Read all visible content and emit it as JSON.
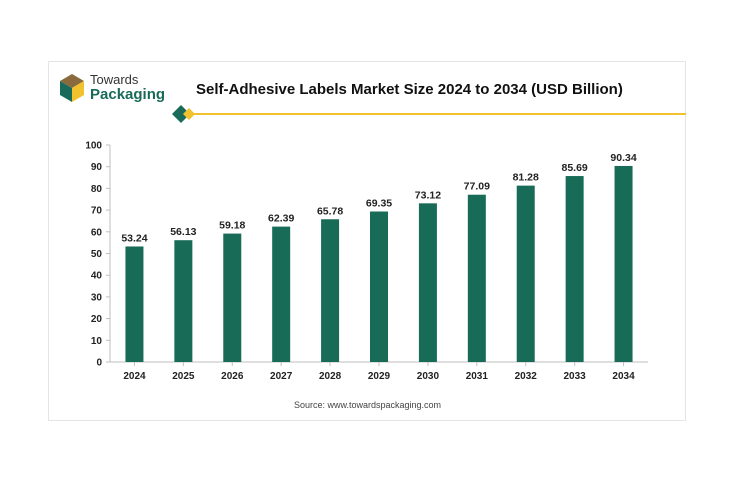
{
  "header": {
    "logo_line1": "Towards",
    "logo_line2": "Packaging",
    "accent_color": "#f2c12e",
    "brand_color": "#1a6a5a"
  },
  "chart_data": {
    "type": "bar",
    "title": "Self-Adhesive Labels Market Size 2024 to 2034 (USD Billion)",
    "categories": [
      "2024",
      "2025",
      "2026",
      "2027",
      "2028",
      "2029",
      "2030",
      "2031",
      "2032",
      "2033",
      "2034"
    ],
    "values": [
      53.24,
      56.13,
      59.18,
      62.39,
      65.78,
      69.35,
      73.12,
      77.09,
      81.28,
      85.69,
      90.34
    ],
    "data_labels": [
      "53.24",
      "56.13",
      "59.18",
      "62.39",
      "65.78",
      "69.35",
      "73.12",
      "77.09",
      "81.28",
      "85.69",
      "90.34"
    ],
    "ylim": [
      0,
      100
    ],
    "yticks": [
      0,
      10,
      20,
      30,
      40,
      50,
      60,
      70,
      80,
      90,
      100
    ],
    "xlabel": "",
    "ylabel": "",
    "bar_color": "#176b57",
    "grid": false,
    "legend": "none"
  },
  "footer": {
    "source": "Source: www.towardspackaging.com"
  }
}
